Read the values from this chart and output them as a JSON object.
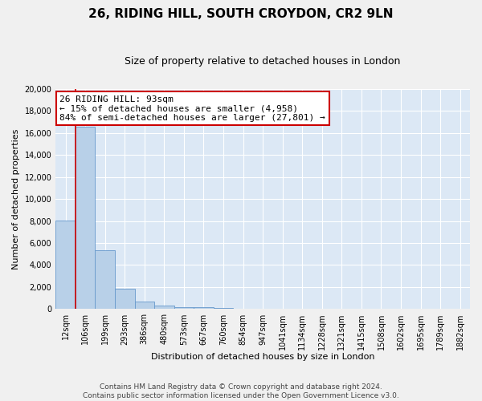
{
  "title_line1": "26, RIDING HILL, SOUTH CROYDON, CR2 9LN",
  "title_line2": "Size of property relative to detached houses in London",
  "xlabel": "Distribution of detached houses by size in London",
  "ylabel": "Number of detached properties",
  "categories": [
    "12sqm",
    "106sqm",
    "199sqm",
    "293sqm",
    "386sqm",
    "480sqm",
    "573sqm",
    "667sqm",
    "760sqm",
    "854sqm",
    "947sqm",
    "1041sqm",
    "1134sqm",
    "1228sqm",
    "1321sqm",
    "1415sqm",
    "1508sqm",
    "1602sqm",
    "1695sqm",
    "1789sqm",
    "1882sqm"
  ],
  "values": [
    8050,
    16550,
    5350,
    1850,
    700,
    320,
    210,
    175,
    135,
    0,
    0,
    0,
    0,
    0,
    0,
    0,
    0,
    0,
    0,
    0,
    0
  ],
  "bar_color": "#b8d0e8",
  "bar_edge_color": "#6699cc",
  "vline_color": "#cc0000",
  "annotation_text": "26 RIDING HILL: 93sqm\n← 15% of detached houses are smaller (4,958)\n84% of semi-detached houses are larger (27,801) →",
  "annotation_box_color": "#ffffff",
  "annotation_box_edge": "#cc0000",
  "ylim": [
    0,
    20000
  ],
  "yticks": [
    0,
    2000,
    4000,
    6000,
    8000,
    10000,
    12000,
    14000,
    16000,
    18000,
    20000
  ],
  "footnote": "Contains HM Land Registry data © Crown copyright and database right 2024.\nContains public sector information licensed under the Open Government Licence v3.0.",
  "fig_background": "#f0f0f0",
  "plot_background": "#dce8f5",
  "grid_color": "#ffffff",
  "title_fontsize": 11,
  "subtitle_fontsize": 9,
  "axis_label_fontsize": 8,
  "tick_fontsize": 7,
  "annotation_fontsize": 8,
  "footnote_fontsize": 6.5
}
